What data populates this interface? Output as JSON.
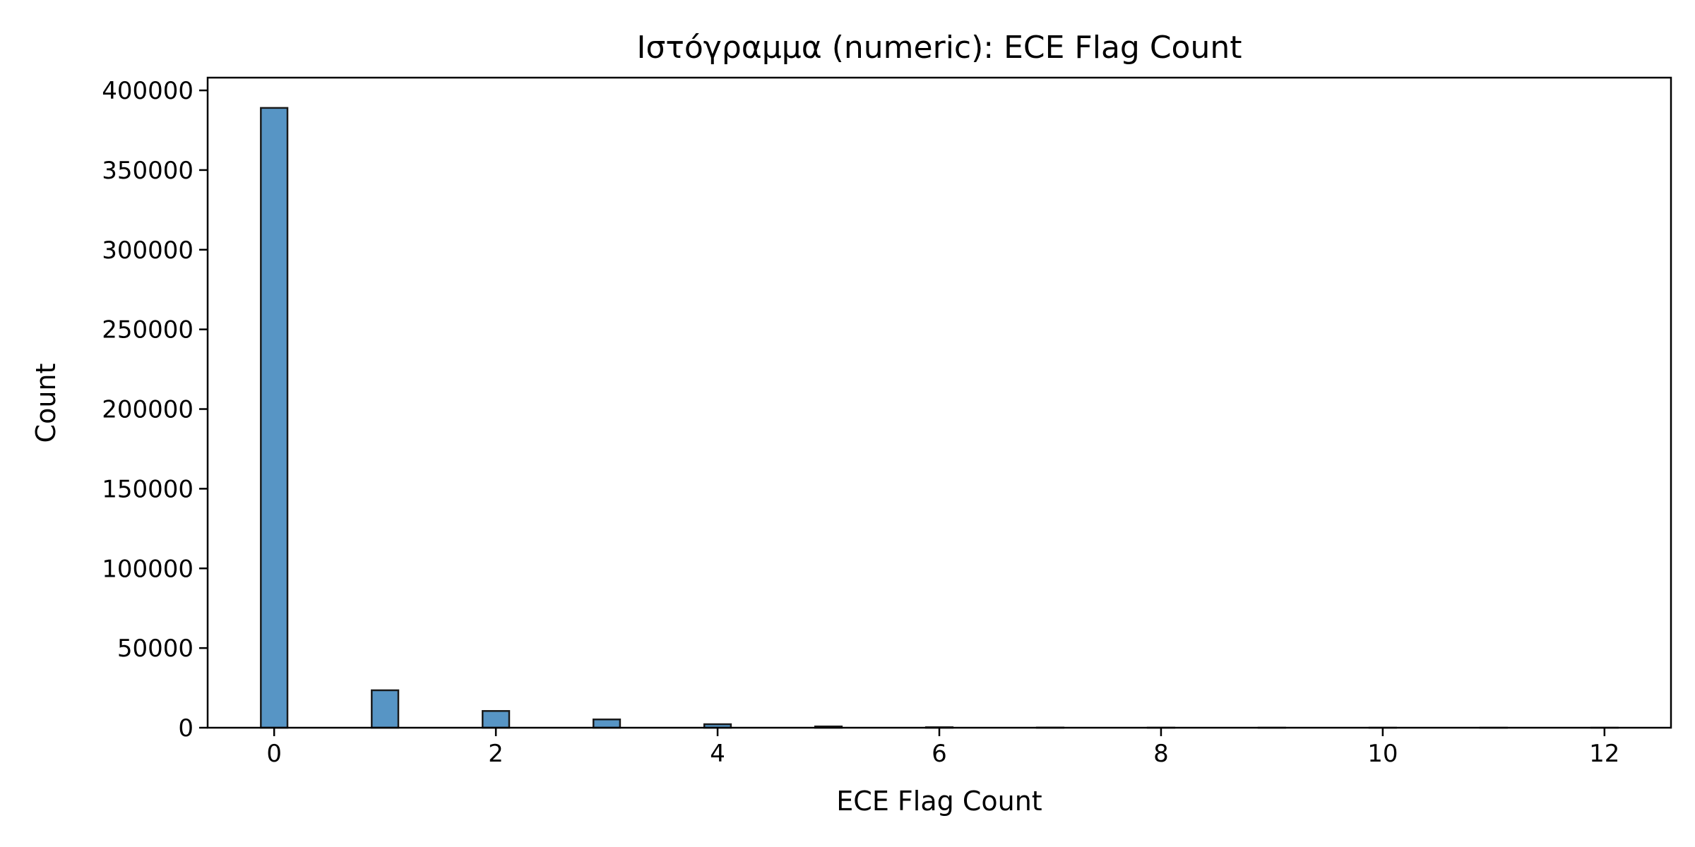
{
  "chart_data": {
    "type": "bar",
    "title": "Ιστόγραμμα (numeric): ECE Flag Count",
    "xlabel": "ECE Flag Count",
    "ylabel": "Count",
    "xlim": [
      -0.6,
      12.6
    ],
    "ylim": [
      0,
      408000
    ],
    "xticks": [
      0,
      2,
      4,
      6,
      8,
      10,
      12
    ],
    "xtick_labels": [
      "0",
      "2",
      "4",
      "6",
      "8",
      "10",
      "12"
    ],
    "yticks": [
      0,
      50000,
      100000,
      150000,
      200000,
      250000,
      300000,
      350000,
      400000
    ],
    "ytick_labels": [
      "0",
      "50000",
      "100000",
      "150000",
      "200000",
      "250000",
      "300000",
      "350000",
      "400000"
    ],
    "bin_width": 0.24,
    "bins": [
      {
        "x": 0,
        "value": 389000
      },
      {
        "x": 1,
        "value": 23500
      },
      {
        "x": 2,
        "value": 10500
      },
      {
        "x": 3,
        "value": 5200
      },
      {
        "x": 4,
        "value": 2200
      },
      {
        "x": 5,
        "value": 800
      },
      {
        "x": 6,
        "value": 300
      },
      {
        "x": 7,
        "value": 100
      },
      {
        "x": 8,
        "value": 40
      },
      {
        "x": 9,
        "value": 15
      },
      {
        "x": 10,
        "value": 5
      },
      {
        "x": 11,
        "value": 2
      },
      {
        "x": 12,
        "value": 1
      }
    ],
    "colors": {
      "bar_fill": "#5795c5",
      "bar_edge": "#1a1a1a"
    },
    "grid": false,
    "legend": "none"
  }
}
